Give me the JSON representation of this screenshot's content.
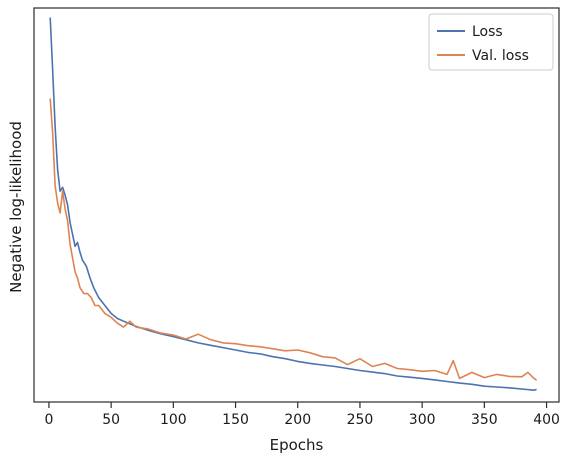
{
  "chart_data": {
    "type": "line",
    "title": "",
    "xlabel": "Epochs",
    "ylabel": "Negative log-likelihood",
    "xlim": [
      -12,
      410
    ],
    "ylim": [
      0,
      1
    ],
    "y_ticks_labeled": false,
    "xticks": [
      0,
      50,
      100,
      150,
      200,
      250,
      300,
      350,
      400
    ],
    "grid": false,
    "legend_position": "top-right",
    "series": [
      {
        "name": "Loss",
        "color": "#4c72b0",
        "x": [
          1,
          3,
          5,
          7,
          9,
          11,
          13,
          15,
          17,
          19,
          21,
          23,
          25,
          27,
          30,
          33,
          36,
          40,
          45,
          50,
          55,
          60,
          70,
          80,
          90,
          100,
          110,
          120,
          130,
          140,
          150,
          160,
          170,
          180,
          190,
          200,
          210,
          220,
          230,
          240,
          250,
          260,
          270,
          280,
          290,
          300,
          310,
          320,
          330,
          340,
          350,
          360,
          370,
          380,
          390,
          392
        ],
        "y": [
          0.976,
          0.84,
          0.7,
          0.59,
          0.535,
          0.545,
          0.525,
          0.5,
          0.455,
          0.425,
          0.395,
          0.405,
          0.38,
          0.36,
          0.345,
          0.315,
          0.29,
          0.265,
          0.245,
          0.225,
          0.212,
          0.205,
          0.192,
          0.182,
          0.173,
          0.166,
          0.158,
          0.15,
          0.144,
          0.138,
          0.132,
          0.126,
          0.122,
          0.115,
          0.11,
          0.103,
          0.098,
          0.094,
          0.09,
          0.085,
          0.08,
          0.076,
          0.072,
          0.066,
          0.063,
          0.06,
          0.056,
          0.052,
          0.048,
          0.045,
          0.04,
          0.038,
          0.036,
          0.033,
          0.03,
          0.032
        ]
      },
      {
        "name": "Val. loss",
        "color": "#dd8452",
        "x": [
          1,
          3,
          5,
          7,
          9,
          11,
          13,
          15,
          17,
          19,
          21,
          23,
          25,
          28,
          31,
          34,
          37,
          40,
          45,
          50,
          55,
          60,
          65,
          70,
          80,
          90,
          100,
          110,
          120,
          130,
          140,
          150,
          160,
          170,
          180,
          190,
          200,
          210,
          220,
          230,
          240,
          250,
          260,
          270,
          280,
          290,
          300,
          310,
          320,
          325,
          330,
          340,
          350,
          360,
          370,
          380,
          385,
          390,
          392
        ],
        "y": [
          0.77,
          0.68,
          0.55,
          0.505,
          0.48,
          0.535,
          0.49,
          0.46,
          0.4,
          0.365,
          0.33,
          0.315,
          0.29,
          0.275,
          0.275,
          0.265,
          0.245,
          0.245,
          0.225,
          0.215,
          0.2,
          0.19,
          0.205,
          0.19,
          0.185,
          0.175,
          0.17,
          0.16,
          0.172,
          0.158,
          0.15,
          0.148,
          0.143,
          0.14,
          0.135,
          0.13,
          0.132,
          0.125,
          0.115,
          0.112,
          0.095,
          0.11,
          0.09,
          0.098,
          0.085,
          0.082,
          0.078,
          0.08,
          0.07,
          0.105,
          0.06,
          0.075,
          0.062,
          0.07,
          0.065,
          0.064,
          0.075,
          0.06,
          0.055
        ]
      }
    ]
  }
}
